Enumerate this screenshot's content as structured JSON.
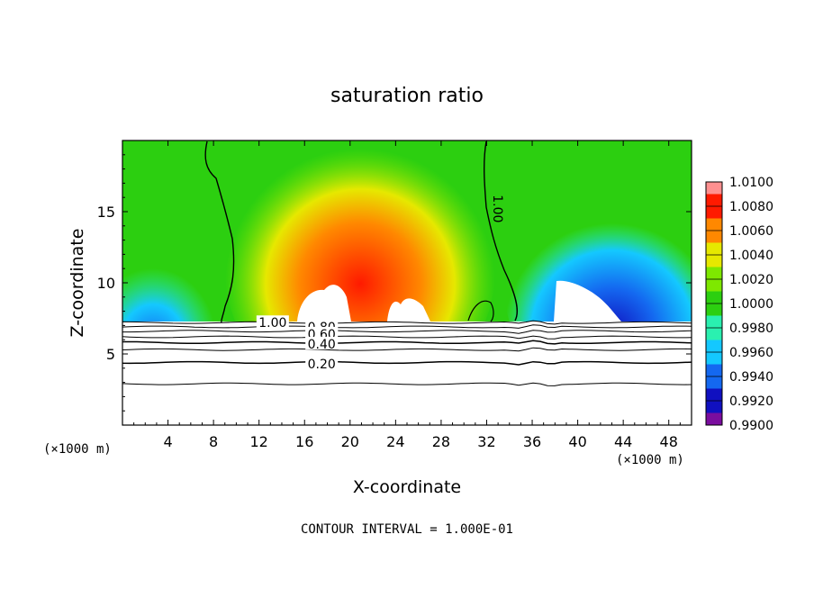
{
  "chart_data": {
    "type": "heatmap",
    "title": "saturation ratio",
    "xlabel": "X-coordinate",
    "ylabel": "Z-coordinate",
    "x_unit_label_left": "(×1000 m)",
    "x_unit_label_right": "(×1000 m)",
    "footer": "CONTOUR INTERVAL = 1.000E-01",
    "xlim": [
      0,
      50
    ],
    "ylim": [
      0,
      20
    ],
    "x_ticks": [
      4,
      8,
      12,
      16,
      20,
      24,
      28,
      32,
      36,
      40,
      44,
      48
    ],
    "y_ticks": [
      5,
      10,
      15
    ],
    "colorbar": {
      "levels": [
        "0.9900",
        "0.9920",
        "0.9940",
        "0.9960",
        "0.9980",
        "1.0000",
        "1.0020",
        "1.0040",
        "1.0060",
        "1.0080",
        "1.0100"
      ],
      "colors": [
        "#7a0d9e",
        "#1010c0",
        "#1468f0",
        "#14c8ff",
        "#2af0b0",
        "#2ccf10",
        "#7ee800",
        "#e6e800",
        "#ff8800",
        "#ff1a00",
        "#ff9090"
      ]
    },
    "contour_labels": [
      {
        "text": "1.00",
        "x": 33.0,
        "z": 15.2
      },
      {
        "text": "1.00",
        "x": 13.2,
        "z": 7.2
      },
      {
        "text": "0.80",
        "x": 17.5,
        "z": 6.9
      },
      {
        "text": "0.60",
        "x": 17.5,
        "z": 6.4
      },
      {
        "text": "0.40",
        "x": 17.5,
        "z": 5.7
      },
      {
        "text": "0.20",
        "x": 17.5,
        "z": 4.3
      }
    ],
    "contour_lines_z": [
      2.9,
      4.4,
      5.3,
      5.8,
      6.2,
      6.6,
      6.9,
      7.2
    ],
    "grid": false
  }
}
